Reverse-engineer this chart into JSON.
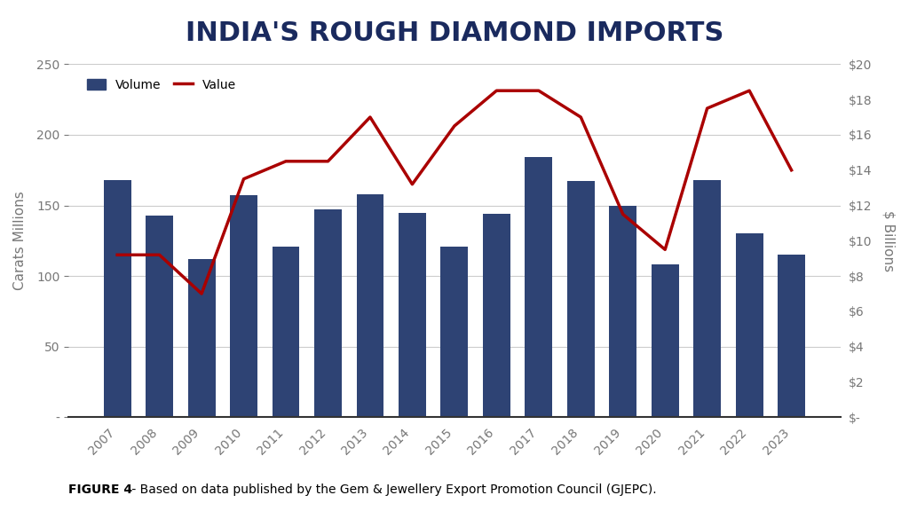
{
  "years": [
    2007,
    2008,
    2009,
    2010,
    2011,
    2012,
    2013,
    2014,
    2015,
    2016,
    2017,
    2018,
    2019,
    2020,
    2021,
    2022,
    2023
  ],
  "volume": [
    168,
    143,
    112,
    157,
    121,
    147,
    158,
    145,
    121,
    144,
    184,
    167,
    150,
    108,
    168,
    130,
    115
  ],
  "value": [
    9.2,
    9.2,
    7.0,
    13.5,
    14.5,
    14.5,
    17.0,
    13.2,
    16.5,
    18.5,
    18.5,
    17.0,
    11.5,
    9.5,
    17.5,
    18.5,
    14.0
  ],
  "bar_color": "#2E4374",
  "line_color": "#AA0000",
  "background_color": "#FFFFFF",
  "title": "INDIA'S ROUGH DIAMOND IMPORTS",
  "ylabel_left": "Carats Millions",
  "ylabel_right": "$ Billions",
  "ylim_left": [
    0,
    250
  ],
  "ylim_right": [
    0,
    20
  ],
  "yticks_left": [
    0,
    50,
    100,
    150,
    200,
    250
  ],
  "ytick_labels_left": [
    "-",
    "50",
    "100",
    "150",
    "200",
    "250"
  ],
  "yticks_right": [
    0,
    2,
    4,
    6,
    8,
    10,
    12,
    14,
    16,
    18,
    20
  ],
  "ytick_labels_right": [
    "$-",
    "$2",
    "$4",
    "$6",
    "$8",
    "$10",
    "$12",
    "$14",
    "$16",
    "$18",
    "$20"
  ],
  "caption_bold": "FIGURE 4",
  "caption_rest": " - Based on data published by the Gem & Jewellery Export Promotion Council (GJEPC).",
  "title_fontsize": 22,
  "axis_label_fontsize": 11,
  "tick_fontsize": 10,
  "caption_fontsize": 10,
  "grid_color": "#CCCCCC",
  "legend_volume": "Volume",
  "legend_value": "Value",
  "title_color": "#1a2a5e",
  "tick_color": "#777777"
}
